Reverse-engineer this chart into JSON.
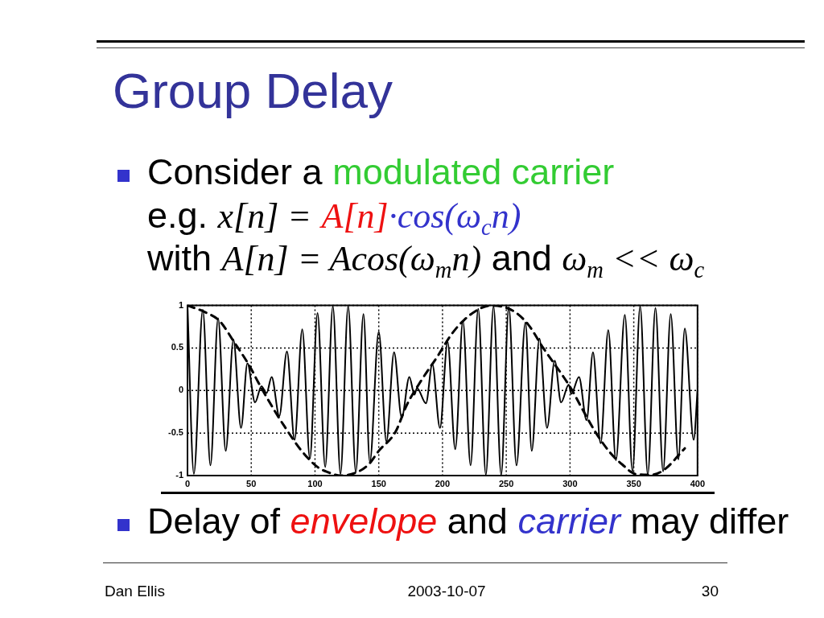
{
  "chart_data": {
    "type": "line",
    "title": "Group Delay",
    "annotations": [
      "Consider a",
      "modulated carrier",
      "e.g.",
      "x[n] =",
      "A[n]",
      "·cos(ω$_{c}$n)",
      "with",
      "A[n] = Acos(ω$_{m}$n)",
      "and",
      "ω$_{m}$ << ω$_{c}$",
      "Delay of",
      "envelope",
      "and",
      "carrier",
      "may differ",
      "Dan Ellis",
      "2003-10-07",
      "30"
    ],
    "series": [
      {
        "color": "#000000",
        "line_style": "solid",
        "x": [
          0,
          5,
          12,
          18,
          24,
          30,
          36,
          42,
          47,
          53,
          58,
          62,
          66,
          72,
          78,
          84,
          90,
          96,
          102,
          108,
          114,
          120,
          126,
          132,
          138,
          143,
          150,
          156,
          162,
          168,
          174,
          178,
          180,
          187,
          192,
          198,
          204,
          210,
          216,
          222,
          228,
          234,
          240,
          246,
          252,
          258,
          265,
          270,
          276,
          282,
          288,
          293,
          299,
          301,
          307,
          313,
          318,
          324,
          330,
          336,
          343,
          349,
          355,
          361,
          367,
          373,
          379,
          385,
          390,
          397,
          400
        ],
        "values": [
          1.0,
          -0.98,
          0.95,
          -0.88,
          0.85,
          -0.71,
          0.6,
          -0.44,
          0.32,
          -0.14,
          0.05,
          -0.03,
          0.16,
          -0.3,
          0.46,
          -0.58,
          0.72,
          -0.8,
          0.91,
          -0.9,
          0.99,
          -0.98,
          0.99,
          -0.96,
          0.9,
          -0.84,
          0.69,
          -0.6,
          0.45,
          -0.32,
          0.16,
          -0.05,
          0.03,
          -0.15,
          0.31,
          -0.44,
          0.57,
          -0.69,
          0.82,
          -0.88,
          0.96,
          -0.99,
          0.99,
          -0.99,
          0.98,
          -0.88,
          0.8,
          -0.71,
          0.61,
          -0.44,
          0.35,
          -0.14,
          0.07,
          -0.04,
          0.16,
          -0.35,
          0.45,
          -0.62,
          0.71,
          -0.82,
          0.89,
          -0.95,
          0.99,
          -0.99,
          0.97,
          -0.95,
          0.9,
          -0.81,
          0.73,
          -0.58,
          0.0
        ]
      },
      {
        "color": "#000000",
        "line_style": "dashed",
        "x": [
          0,
          14,
          25,
          37,
          49,
          55,
          68,
          76,
          89,
          102,
          110,
          120,
          133,
          142,
          150,
          163,
          172,
          183,
          196,
          207,
          217,
          229,
          238,
          255,
          267,
          279,
          294,
          301,
          309,
          320,
          332,
          341,
          351,
          364,
          374,
          390
        ],
        "values": [
          1.0,
          0.92,
          0.82,
          0.56,
          0.28,
          0.11,
          -0.23,
          -0.42,
          -0.7,
          -0.9,
          -0.96,
          -1.0,
          -0.96,
          -0.87,
          -0.71,
          -0.49,
          -0.17,
          0.11,
          0.4,
          0.66,
          0.83,
          0.96,
          1.0,
          0.94,
          0.78,
          0.5,
          0.18,
          0.02,
          -0.2,
          -0.49,
          -0.74,
          -0.87,
          -0.98,
          -0.99,
          -0.93,
          -0.68
        ]
      }
    ],
    "xlim": [
      0,
      400
    ],
    "xticks": [
      0,
      50,
      100,
      150,
      200,
      250,
      300,
      350,
      400
    ],
    "ylim": [
      -1,
      1
    ],
    "yticks": [
      -1,
      -0.5,
      0,
      0.5,
      1
    ],
    "grid": true
  }
}
